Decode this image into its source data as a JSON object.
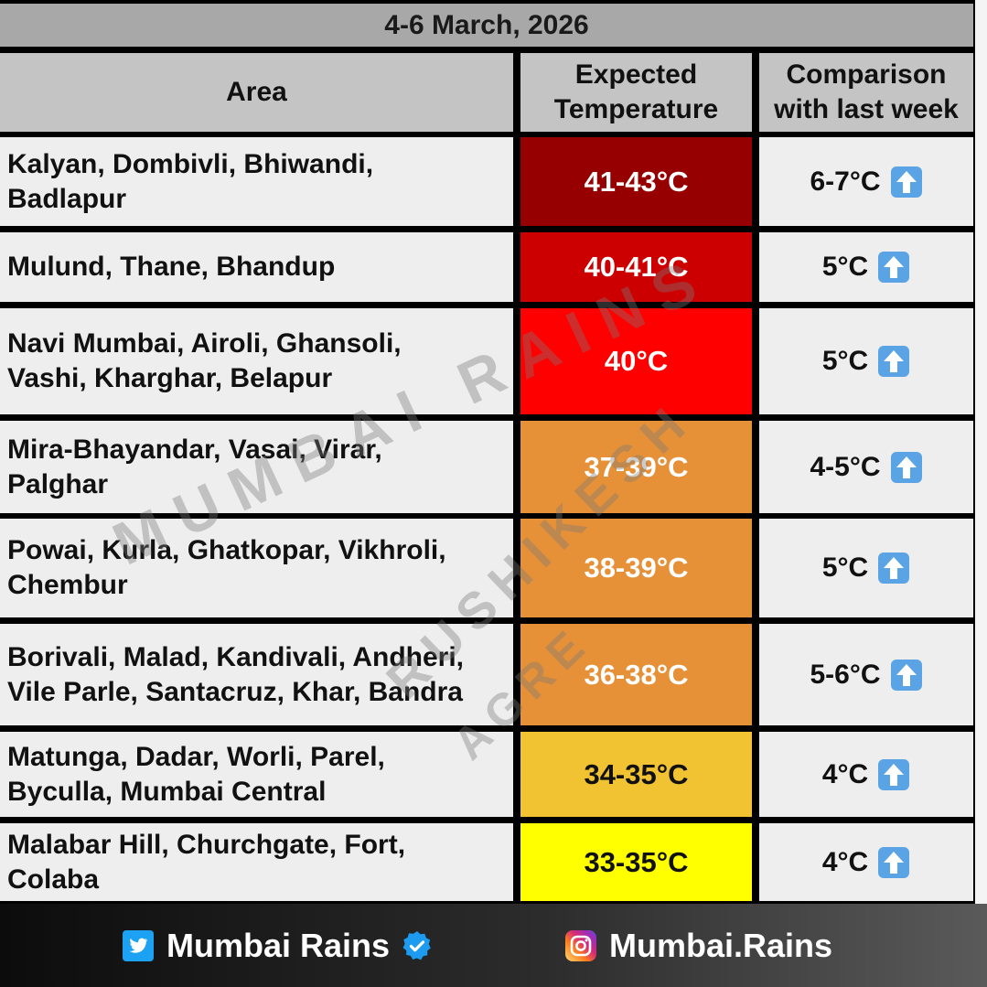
{
  "title": "4-6 March, 2026",
  "headers": {
    "area": "Area",
    "temperature_line1": "Expected",
    "temperature_line2": "Temperature",
    "comparison_line1": "Comparison",
    "comparison_line2": "with last week"
  },
  "rows": [
    {
      "area_line1": "Kalyan, Dombivli, Bhiwandi,",
      "area_line2": "Badlapur",
      "temperature": "41-43°C",
      "comparison": "6-7°C",
      "color": "#960000",
      "text_color": "#ffffff"
    },
    {
      "area_line1": "Mulund, Thane, Bhandup",
      "area_line2": "",
      "temperature": "40-41°C",
      "comparison": "5°C",
      "color": "#cc0000",
      "text_color": "#ffffff"
    },
    {
      "area_line1": "Navi Mumbai, Airoli, Ghansoli,",
      "area_line2": "Vashi, Kharghar, Belapur",
      "temperature": "40°C",
      "comparison": "5°C",
      "color": "#ff0000",
      "text_color": "#ffffff"
    },
    {
      "area_line1": "Mira-Bhayandar, Vasai, Virar,",
      "area_line2": "Palghar",
      "temperature": "37-39°C",
      "comparison": "4-5°C",
      "color": "#e69138",
      "text_color": "#ffffff"
    },
    {
      "area_line1": "Powai, Kurla, Ghatkopar, Vikhroli,",
      "area_line2": "Chembur",
      "temperature": "38-39°C",
      "comparison": "5°C",
      "color": "#e69138",
      "text_color": "#ffffff"
    },
    {
      "area_line1": "Borivali, Malad, Kandivali, Andheri,",
      "area_line2": "Vile Parle, Santacruz, Khar, Bandra",
      "temperature": "36-38°C",
      "comparison": "5-6°C",
      "color": "#e69138",
      "text_color": "#ffffff"
    },
    {
      "area_line1": "Matunga, Dadar, Worli, Parel,",
      "area_line2": "Byculla, Mumbai Central",
      "temperature": "34-35°C",
      "comparison": "4°C",
      "color": "#f1c232",
      "text_color": "#111111"
    },
    {
      "area_line1": "Malabar Hill, Churchgate, Fort,",
      "area_line2": "Colaba",
      "temperature": "33-35°C",
      "comparison": "4°C",
      "color": "#ffff00",
      "text_color": "#111111"
    }
  ],
  "icons": {
    "trend": "up-arrow-icon",
    "twitter": "twitter-icon",
    "verified": "verified-badge-icon",
    "instagram": "instagram-icon"
  },
  "footer": {
    "twitter_handle": "Mumbai Rains",
    "instagram_handle": "Mumbai.Rains"
  },
  "watermarks": {
    "line1": "MUMBAI RAINS",
    "line2": "RUSHIKESH",
    "line3": "AGRE"
  },
  "colors": {
    "title_bg": "#a8a8a8",
    "header_bg": "#c4c4c4",
    "cell_bg": "#eeeeee",
    "twitter_blue": "#1da1f2",
    "up_arrow_blue": "#5aa4e6"
  }
}
